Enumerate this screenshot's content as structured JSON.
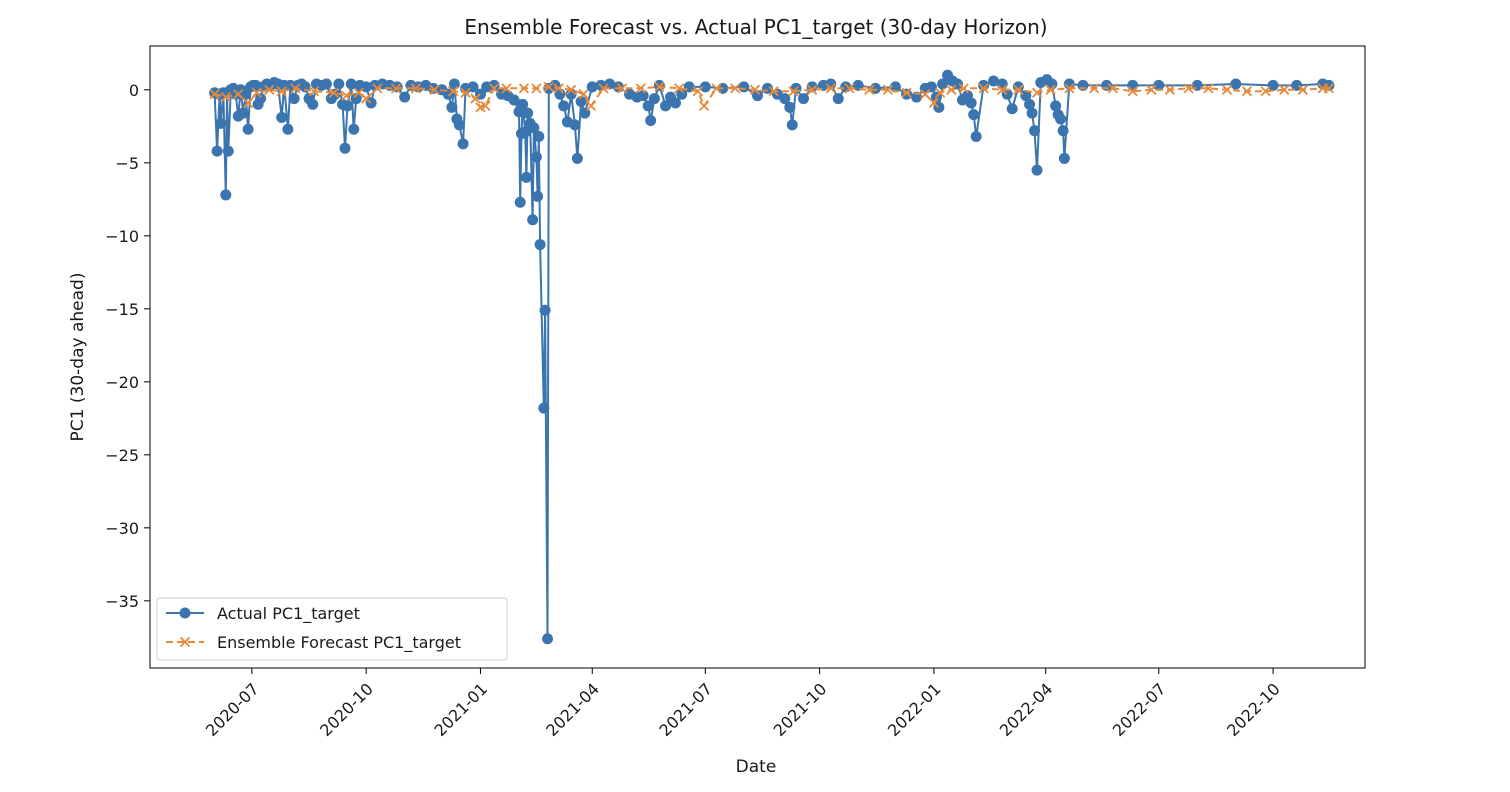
{
  "chart_data": {
    "type": "line",
    "title": "Ensemble Forecast vs. Actual PC1_target (30-day Horizon)",
    "xlabel": "Date",
    "ylabel": "PC1 (30-day ahead)",
    "xlim": [
      "2020-04-10",
      "2022-12-14"
    ],
    "ylim": [
      -39.6,
      3.0
    ],
    "x_ticks": [
      "2020-07",
      "2020-10",
      "2021-01",
      "2021-04",
      "2021-07",
      "2021-10",
      "2022-01",
      "2022-04",
      "2022-07",
      "2022-10"
    ],
    "y_ticks": [
      0,
      -5,
      -10,
      -15,
      -20,
      -25,
      -30,
      -35
    ],
    "grid": false,
    "legend_position": "lower-left",
    "series": [
      {
        "name": "Actual PC1_target",
        "color": "#3b75af",
        "marker": "circle",
        "line": "solid",
        "points": [
          [
            "2020-06-01",
            -0.2
          ],
          [
            "2020-06-03",
            -4.2
          ],
          [
            "2020-06-05",
            -0.3
          ],
          [
            "2020-06-06",
            -2.3
          ],
          [
            "2020-06-08",
            -0.2
          ],
          [
            "2020-06-10",
            -7.2
          ],
          [
            "2020-06-11",
            -0.2
          ],
          [
            "2020-06-12",
            -4.2
          ],
          [
            "2020-06-14",
            0.0
          ],
          [
            "2020-06-16",
            0.1
          ],
          [
            "2020-06-18",
            -0.3
          ],
          [
            "2020-06-20",
            -1.8
          ],
          [
            "2020-06-22",
            0.0
          ],
          [
            "2020-06-24",
            -1.6
          ],
          [
            "2020-06-26",
            -0.3
          ],
          [
            "2020-06-28",
            -2.7
          ],
          [
            "2020-06-30",
            0.2
          ],
          [
            "2020-07-02",
            0.3
          ],
          [
            "2020-07-04",
            0.3
          ],
          [
            "2020-07-06",
            -1.0
          ],
          [
            "2020-07-08",
            -0.6
          ],
          [
            "2020-07-10",
            0.2
          ],
          [
            "2020-07-13",
            0.4
          ],
          [
            "2020-07-16",
            0.3
          ],
          [
            "2020-07-19",
            0.5
          ],
          [
            "2020-07-22",
            0.4
          ],
          [
            "2020-07-25",
            -1.9
          ],
          [
            "2020-07-27",
            0.3
          ],
          [
            "2020-07-30",
            -2.7
          ],
          [
            "2020-08-01",
            0.3
          ],
          [
            "2020-08-04",
            -0.6
          ],
          [
            "2020-08-07",
            0.3
          ],
          [
            "2020-08-10",
            0.4
          ],
          [
            "2020-08-13",
            0.2
          ],
          [
            "2020-08-16",
            -0.6
          ],
          [
            "2020-08-19",
            -1.0
          ],
          [
            "2020-08-22",
            0.4
          ],
          [
            "2020-08-26",
            0.3
          ],
          [
            "2020-08-30",
            0.4
          ],
          [
            "2020-09-03",
            -0.6
          ],
          [
            "2020-09-06",
            -0.3
          ],
          [
            "2020-09-09",
            0.4
          ],
          [
            "2020-09-12",
            -1.0
          ],
          [
            "2020-09-14",
            -4.0
          ],
          [
            "2020-09-16",
            -1.1
          ],
          [
            "2020-09-19",
            0.4
          ],
          [
            "2020-09-21",
            -2.7
          ],
          [
            "2020-09-23",
            -0.6
          ],
          [
            "2020-09-26",
            0.3
          ],
          [
            "2020-10-01",
            0.2
          ],
          [
            "2020-10-05",
            -0.9
          ],
          [
            "2020-10-08",
            0.3
          ],
          [
            "2020-10-14",
            0.4
          ],
          [
            "2020-10-20",
            0.3
          ],
          [
            "2020-10-26",
            0.2
          ],
          [
            "2020-11-01",
            -0.5
          ],
          [
            "2020-11-06",
            0.3
          ],
          [
            "2020-11-12",
            0.2
          ],
          [
            "2020-11-18",
            0.3
          ],
          [
            "2020-11-24",
            0.1
          ],
          [
            "2020-12-01",
            0.0
          ],
          [
            "2020-12-06",
            -0.3
          ],
          [
            "2020-12-09",
            -1.2
          ],
          [
            "2020-12-11",
            0.4
          ],
          [
            "2020-12-13",
            -2.0
          ],
          [
            "2020-12-15",
            -2.4
          ],
          [
            "2020-12-18",
            -3.7
          ],
          [
            "2020-12-20",
            0.1
          ],
          [
            "2020-12-26",
            0.2
          ],
          [
            "2021-01-01",
            -0.3
          ],
          [
            "2021-01-06",
            0.2
          ],
          [
            "2021-01-12",
            0.3
          ],
          [
            "2021-01-18",
            -0.3
          ],
          [
            "2021-01-23",
            -0.4
          ],
          [
            "2021-01-28",
            -0.7
          ],
          [
            "2021-02-01",
            -1.5
          ],
          [
            "2021-02-02",
            -7.7
          ],
          [
            "2021-02-03",
            -3.0
          ],
          [
            "2021-02-04",
            -1.0
          ],
          [
            "2021-02-06",
            -2.9
          ],
          [
            "2021-02-07",
            -6.0
          ],
          [
            "2021-02-08",
            -1.6
          ],
          [
            "2021-02-10",
            -2.3
          ],
          [
            "2021-02-12",
            -8.9
          ],
          [
            "2021-02-13",
            -2.6
          ],
          [
            "2021-02-15",
            -4.6
          ],
          [
            "2021-02-16",
            -7.3
          ],
          [
            "2021-02-17",
            -3.2
          ],
          [
            "2021-02-18",
            -10.6
          ],
          [
            "2021-02-21",
            -21.8
          ],
          [
            "2021-02-22",
            -15.1
          ],
          [
            "2021-02-24",
            -37.6
          ],
          [
            "2021-02-25",
            0.1
          ],
          [
            "2021-03-02",
            0.3
          ],
          [
            "2021-03-06",
            -0.3
          ],
          [
            "2021-03-09",
            -1.1
          ],
          [
            "2021-03-12",
            -2.2
          ],
          [
            "2021-03-15",
            -0.3
          ],
          [
            "2021-03-18",
            -2.4
          ],
          [
            "2021-03-20",
            -4.7
          ],
          [
            "2021-03-23",
            -0.8
          ],
          [
            "2021-03-26",
            -1.6
          ],
          [
            "2021-04-01",
            0.2
          ],
          [
            "2021-04-08",
            0.3
          ],
          [
            "2021-04-15",
            0.4
          ],
          [
            "2021-04-22",
            0.2
          ],
          [
            "2021-05-01",
            -0.3
          ],
          [
            "2021-05-07",
            -0.5
          ],
          [
            "2021-05-12",
            -0.4
          ],
          [
            "2021-05-16",
            -1.1
          ],
          [
            "2021-05-18",
            -2.1
          ],
          [
            "2021-05-21",
            -0.6
          ],
          [
            "2021-05-25",
            0.3
          ],
          [
            "2021-05-30",
            -1.1
          ],
          [
            "2021-06-03",
            -0.5
          ],
          [
            "2021-06-07",
            -0.9
          ],
          [
            "2021-06-12",
            -0.3
          ],
          [
            "2021-06-18",
            0.2
          ],
          [
            "2021-07-01",
            0.2
          ],
          [
            "2021-07-15",
            0.1
          ],
          [
            "2021-08-01",
            0.2
          ],
          [
            "2021-08-12",
            -0.4
          ],
          [
            "2021-08-20",
            0.1
          ],
          [
            "2021-08-28",
            -0.3
          ],
          [
            "2021-09-03",
            -0.6
          ],
          [
            "2021-09-07",
            -1.2
          ],
          [
            "2021-09-09",
            -2.4
          ],
          [
            "2021-09-12",
            0.1
          ],
          [
            "2021-09-18",
            -0.6
          ],
          [
            "2021-09-25",
            0.2
          ],
          [
            "2021-10-04",
            0.3
          ],
          [
            "2021-10-10",
            0.4
          ],
          [
            "2021-10-16",
            -0.6
          ],
          [
            "2021-10-22",
            0.2
          ],
          [
            "2021-11-01",
            0.3
          ],
          [
            "2021-11-15",
            0.1
          ],
          [
            "2021-12-01",
            0.2
          ],
          [
            "2021-12-10",
            -0.3
          ],
          [
            "2021-12-18",
            -0.5
          ],
          [
            "2021-12-25",
            0.1
          ],
          [
            "2021-12-30",
            0.2
          ],
          [
            "2022-01-03",
            -0.5
          ],
          [
            "2022-01-05",
            -1.2
          ],
          [
            "2022-01-08",
            0.4
          ],
          [
            "2022-01-12",
            1.0
          ],
          [
            "2022-01-16",
            0.6
          ],
          [
            "2022-01-20",
            0.4
          ],
          [
            "2022-01-24",
            -0.7
          ],
          [
            "2022-01-28",
            -0.4
          ],
          [
            "2022-01-31",
            -0.9
          ],
          [
            "2022-02-02",
            -1.7
          ],
          [
            "2022-02-04",
            -3.2
          ],
          [
            "2022-02-10",
            0.3
          ],
          [
            "2022-02-18",
            0.6
          ],
          [
            "2022-02-25",
            0.4
          ],
          [
            "2022-03-01",
            -0.3
          ],
          [
            "2022-03-05",
            -1.3
          ],
          [
            "2022-03-10",
            0.2
          ],
          [
            "2022-03-16",
            -0.4
          ],
          [
            "2022-03-19",
            -1.0
          ],
          [
            "2022-03-21",
            -1.6
          ],
          [
            "2022-03-23",
            -2.8
          ],
          [
            "2022-03-25",
            -5.5
          ],
          [
            "2022-03-28",
            0.5
          ],
          [
            "2022-04-02",
            0.7
          ],
          [
            "2022-04-06",
            0.4
          ],
          [
            "2022-04-09",
            -1.1
          ],
          [
            "2022-04-11",
            -1.7
          ],
          [
            "2022-04-13",
            -2.0
          ],
          [
            "2022-04-15",
            -2.8
          ],
          [
            "2022-04-16",
            -4.7
          ],
          [
            "2022-04-20",
            0.4
          ],
          [
            "2022-05-01",
            0.3
          ],
          [
            "2022-05-20",
            0.3
          ],
          [
            "2022-06-10",
            0.3
          ],
          [
            "2022-07-01",
            0.3
          ],
          [
            "2022-08-01",
            0.3
          ],
          [
            "2022-09-01",
            0.4
          ],
          [
            "2022-10-01",
            0.3
          ],
          [
            "2022-10-20",
            0.3
          ],
          [
            "2022-11-10",
            0.4
          ],
          [
            "2022-11-15",
            0.3
          ]
        ]
      },
      {
        "name": "Ensemble Forecast PC1_target",
        "color": "#e8893a",
        "marker": "x",
        "line": "dashed",
        "points": [
          [
            "2020-06-01",
            -0.3
          ],
          [
            "2020-06-10",
            -0.5
          ],
          [
            "2020-06-20",
            -0.3
          ],
          [
            "2020-06-28",
            -0.9
          ],
          [
            "2020-07-05",
            -0.2
          ],
          [
            "2020-07-15",
            0.0
          ],
          [
            "2020-07-25",
            -0.1
          ],
          [
            "2020-08-05",
            0.1
          ],
          [
            "2020-08-20",
            -0.1
          ],
          [
            "2020-09-05",
            -0.2
          ],
          [
            "2020-09-15",
            -0.4
          ],
          [
            "2020-09-25",
            -0.2
          ],
          [
            "2020-10-01",
            -0.6
          ],
          [
            "2020-10-10",
            0.1
          ],
          [
            "2020-10-25",
            0.1
          ],
          [
            "2020-11-10",
            0.1
          ],
          [
            "2020-11-25",
            0.0
          ],
          [
            "2020-12-10",
            -0.1
          ],
          [
            "2020-12-20",
            -0.2
          ],
          [
            "2020-12-28",
            -0.6
          ],
          [
            "2021-01-01",
            -1.2
          ],
          [
            "2021-01-05",
            -1.1
          ],
          [
            "2021-01-12",
            0.1
          ],
          [
            "2021-01-22",
            0.1
          ],
          [
            "2021-02-05",
            0.1
          ],
          [
            "2021-02-15",
            0.1
          ],
          [
            "2021-02-25",
            0.2
          ],
          [
            "2021-03-05",
            0.1
          ],
          [
            "2021-03-15",
            0.0
          ],
          [
            "2021-03-25",
            -0.3
          ],
          [
            "2021-03-31",
            -1.1
          ],
          [
            "2021-04-10",
            0.1
          ],
          [
            "2021-04-25",
            0.1
          ],
          [
            "2021-05-10",
            0.1
          ],
          [
            "2021-05-25",
            0.2
          ],
          [
            "2021-06-10",
            0.1
          ],
          [
            "2021-06-25",
            -0.1
          ],
          [
            "2021-06-30",
            -1.1
          ],
          [
            "2021-07-10",
            0.1
          ],
          [
            "2021-07-25",
            0.1
          ],
          [
            "2021-08-10",
            0.0
          ],
          [
            "2021-08-25",
            -0.1
          ],
          [
            "2021-09-10",
            -0.1
          ],
          [
            "2021-09-25",
            0.0
          ],
          [
            "2021-10-10",
            0.1
          ],
          [
            "2021-10-25",
            0.1
          ],
          [
            "2021-11-10",
            0.0
          ],
          [
            "2021-11-25",
            0.0
          ],
          [
            "2021-12-10",
            -0.2
          ],
          [
            "2021-12-25",
            -0.3
          ],
          [
            "2022-01-01",
            -0.9
          ],
          [
            "2022-01-06",
            -0.2
          ],
          [
            "2022-01-15",
            0.0
          ],
          [
            "2022-01-25",
            0.1
          ],
          [
            "2022-02-10",
            0.1
          ],
          [
            "2022-02-25",
            0.0
          ],
          [
            "2022-03-10",
            0.0
          ],
          [
            "2022-03-25",
            -0.2
          ],
          [
            "2022-04-05",
            0.0
          ],
          [
            "2022-04-20",
            0.1
          ],
          [
            "2022-05-10",
            0.1
          ],
          [
            "2022-05-25",
            0.1
          ],
          [
            "2022-06-10",
            -0.1
          ],
          [
            "2022-06-25",
            0.0
          ],
          [
            "2022-07-10",
            0.0
          ],
          [
            "2022-07-25",
            0.1
          ],
          [
            "2022-08-10",
            0.1
          ],
          [
            "2022-08-25",
            0.0
          ],
          [
            "2022-09-10",
            -0.1
          ],
          [
            "2022-09-25",
            -0.1
          ],
          [
            "2022-10-10",
            0.0
          ],
          [
            "2022-10-25",
            0.0
          ],
          [
            "2022-11-10",
            0.1
          ],
          [
            "2022-11-15",
            0.1
          ]
        ]
      }
    ]
  }
}
